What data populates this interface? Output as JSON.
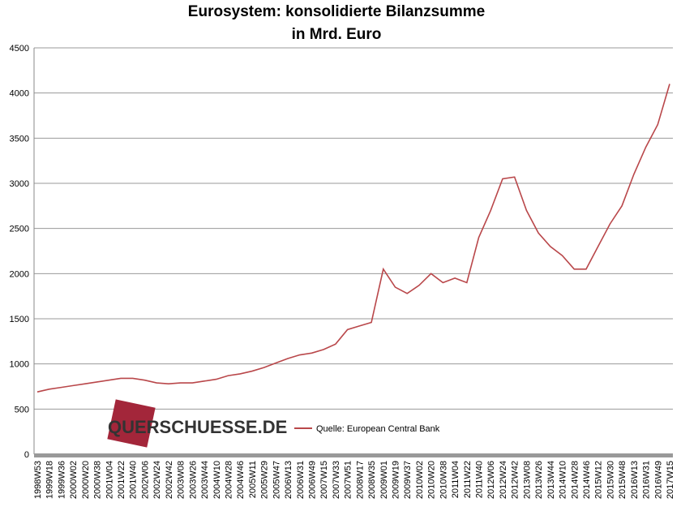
{
  "chart_data": {
    "type": "line",
    "title": "Eurosystem: konsolidierte Bilanzsumme",
    "subtitle": "in Mrd. Euro",
    "watermark": "QUERSCHUESSE.DE",
    "categories": [
      "1998W53",
      "1999W18",
      "1999W36",
      "2000W02",
      "2000W20",
      "2000W38",
      "2001W04",
      "2001W22",
      "2001W40",
      "2002W06",
      "2002W24",
      "2002W42",
      "2003W08",
      "2003W26",
      "2003W44",
      "2004W10",
      "2004W28",
      "2004W46",
      "2005W11",
      "2005W29",
      "2005W47",
      "2006W13",
      "2006W31",
      "2006W49",
      "2007W15",
      "2007W33",
      "2007W51",
      "2008W17",
      "2008W35",
      "2009W01",
      "2009W19",
      "2009W37",
      "2010W02",
      "2010W20",
      "2010W38",
      "2011W04",
      "2011W22",
      "2011W40",
      "2012W06",
      "2012W24",
      "2012W42",
      "2013W08",
      "2013W26",
      "2013W44",
      "2014W10",
      "2014W28",
      "2014W46",
      "2015W12",
      "2015W30",
      "2015W48",
      "2016W13",
      "2016W31",
      "2016W49",
      "2017W15"
    ],
    "series": [
      {
        "name": "Quelle: European Central Bank",
        "color": "#b9474a",
        "values": [
          690,
          720,
          740,
          760,
          780,
          800,
          820,
          840,
          840,
          820,
          790,
          780,
          790,
          790,
          810,
          830,
          870,
          890,
          920,
          960,
          1010,
          1060,
          1100,
          1120,
          1160,
          1220,
          1380,
          1420,
          1460,
          2050,
          1850,
          1780,
          1870,
          2000,
          1900,
          1950,
          1900,
          2400,
          2700,
          3050,
          3070,
          2700,
          2450,
          2300,
          2200,
          2050,
          2050,
          2300,
          2550,
          2750,
          3100,
          3400,
          3650,
          4100
        ]
      }
    ],
    "ylim": [
      0,
      4500
    ],
    "yticks": [
      0,
      500,
      1000,
      1500,
      2000,
      2500,
      3000,
      3500,
      4000,
      4500
    ],
    "grid": true
  }
}
